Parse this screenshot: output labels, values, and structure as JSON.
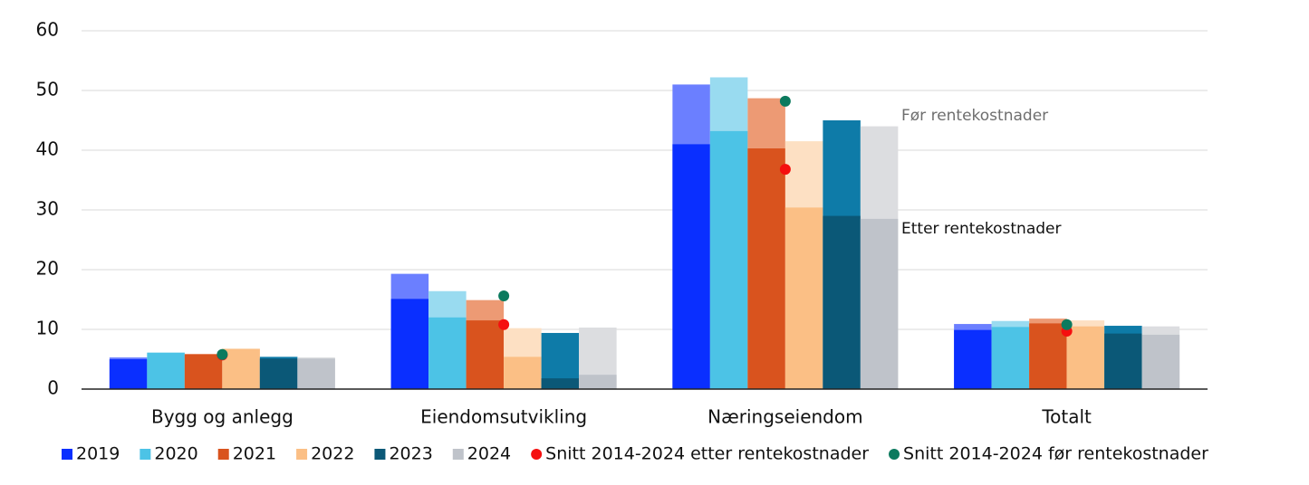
{
  "chart_data": {
    "type": "bar",
    "categories": [
      "Bygg og anlegg",
      "Eiendomsutvikling",
      "Næringseiendom",
      "Totalt"
    ],
    "ylim": [
      0,
      60
    ],
    "yticks": [
      0,
      10,
      20,
      30,
      40,
      50,
      60
    ],
    "grid": true,
    "annotations": [
      "Før rentekostnader",
      "Etter rentekostnader"
    ],
    "series": [
      {
        "name": "2019",
        "color": "#0a2fff",
        "color_before": "#6b7fff",
        "values": [
          5.0,
          15.1,
          41.0,
          9.9
        ],
        "values_before": [
          5.3,
          19.3,
          51.0,
          10.9
        ]
      },
      {
        "name": "2020",
        "color": "#4cc3e6",
        "color_before": "#99dbf0",
        "values": [
          6.1,
          12.0,
          43.2,
          10.4
        ],
        "values_before": [
          6.1,
          16.4,
          52.2,
          11.4
        ]
      },
      {
        "name": "2021",
        "color": "#d9531e",
        "color_before": "#ed9a74",
        "values": [
          5.8,
          11.5,
          40.3,
          11.0
        ],
        "values_before": [
          5.9,
          14.9,
          48.7,
          11.8
        ]
      },
      {
        "name": "2022",
        "color": "#fbbf85",
        "color_before": "#fde0c3",
        "values": [
          6.7,
          5.4,
          30.4,
          10.5
        ],
        "values_before": [
          6.8,
          10.2,
          41.5,
          11.5
        ]
      },
      {
        "name": "2023",
        "color": "#0b5877",
        "color_before": "#0e7ba8",
        "values": [
          5.1,
          1.8,
          29.0,
          9.3
        ],
        "values_before": [
          5.4,
          9.4,
          45.0,
          10.6
        ]
      },
      {
        "name": "2024",
        "color": "#bfc3ca",
        "color_before": "#dcdde0",
        "values": [
          5.1,
          2.4,
          28.5,
          9.1
        ],
        "values_before": [
          5.3,
          10.3,
          44.0,
          10.5
        ]
      }
    ],
    "points": [
      {
        "name": "Snitt 2014-2024 etter rentekostnader",
        "color": "#f50f0f",
        "values": [
          5.7,
          10.8,
          36.8,
          9.7
        ]
      },
      {
        "name": "Snitt 2014-2024 før rentekostnader",
        "color": "#0b7a5e",
        "values": [
          5.8,
          15.6,
          48.2,
          10.8
        ]
      }
    ]
  }
}
